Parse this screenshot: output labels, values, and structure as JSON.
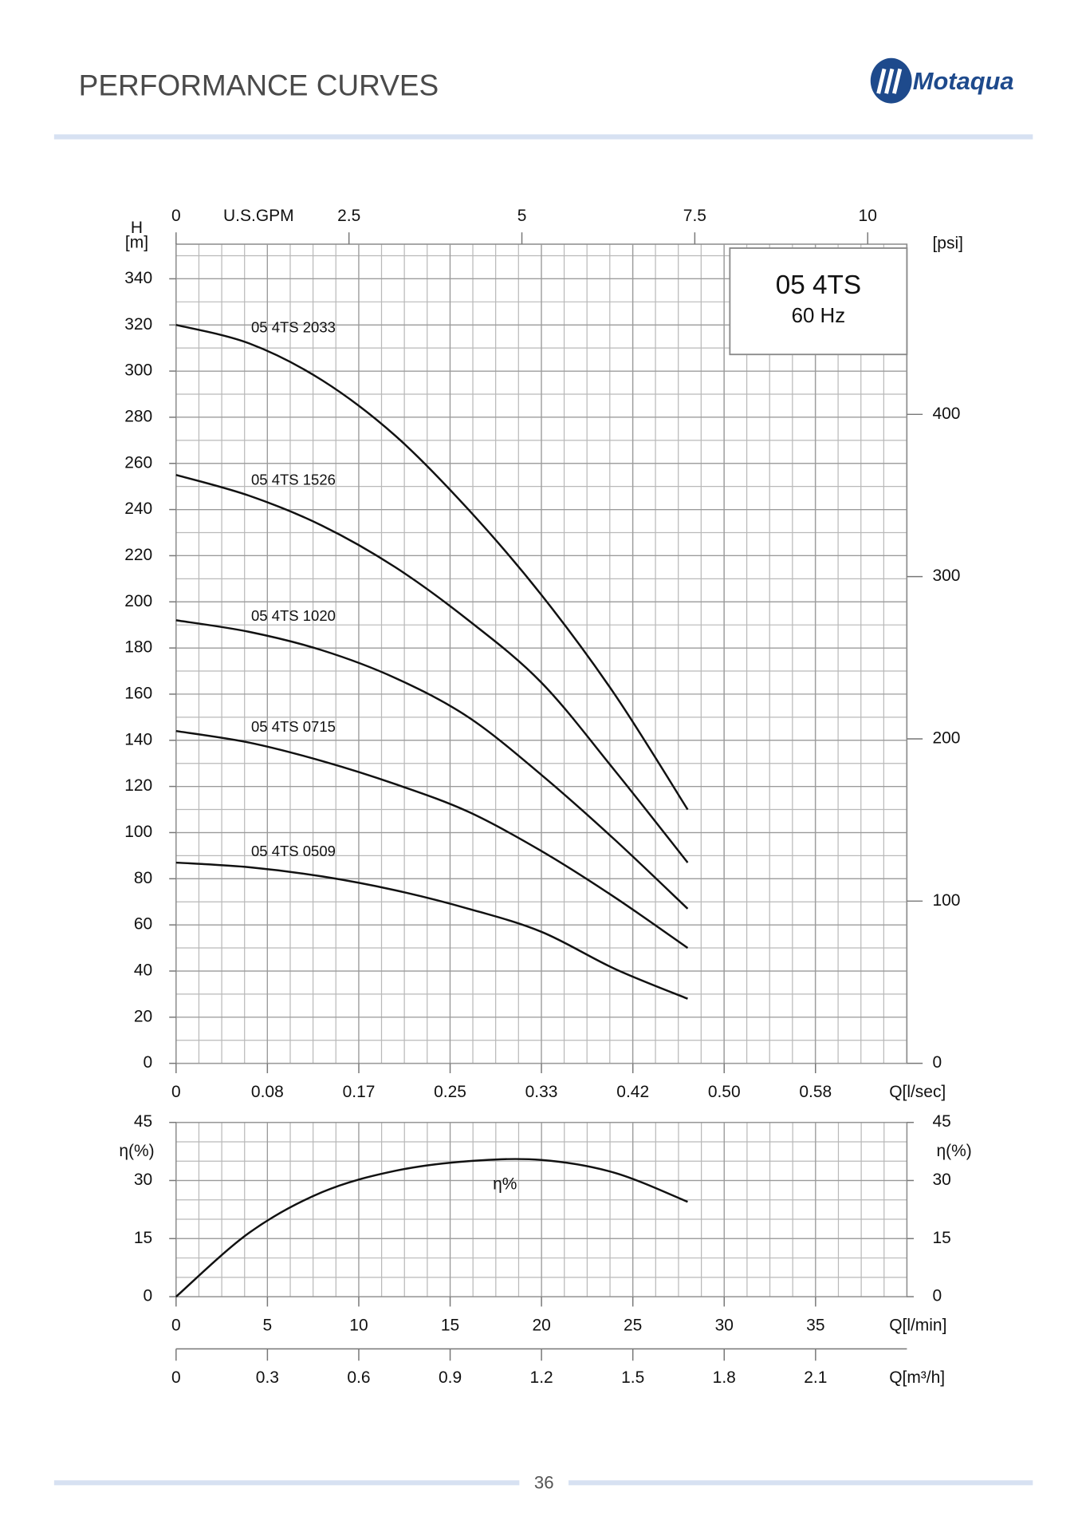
{
  "header": {
    "title": "PERFORMANCE CURVES",
    "logo": "Motaqua"
  },
  "chart_data": [
    {
      "type": "line",
      "box_title": "05 4TS",
      "box_subtitle": "60 Hz",
      "ylabel": "H",
      "yunit": "[m]",
      "y2label": "[psi]",
      "xlabel": "Q[l/sec]",
      "x2label": "U.S.GPM",
      "x": [
        0,
        0.0667,
        0.1333,
        0.2,
        0.2667,
        0.3333,
        0.4,
        0.4667
      ],
      "xlim": [
        0,
        0.6667
      ],
      "xticks": [
        0,
        {
          "value": 0.0833,
          "label": "0.08"
        },
        {
          "value": 0.1667,
          "label": "0.17"
        },
        0.25,
        {
          "value": 0.3333,
          "label": "0.33"
        },
        {
          "value": 0.4167,
          "label": "0.42"
        },
        {
          "value": 0.5,
          "label": "0.50"
        },
        {
          "value": 0.5833,
          "label": "0.58"
        }
      ],
      "x2lim": [
        0,
        10.567
      ],
      "x2ticks": [
        0,
        2.5,
        5,
        7.5,
        10
      ],
      "ylim": [
        0,
        355
      ],
      "yticks": [
        0,
        20,
        40,
        60,
        80,
        100,
        120,
        140,
        160,
        180,
        200,
        220,
        240,
        260,
        280,
        300,
        320,
        340
      ],
      "y2lim": [
        0,
        504.9
      ],
      "y2ticks": [
        0,
        100,
        200,
        300,
        400
      ],
      "grid": true,
      "series": [
        {
          "name": "05 4TS 2033",
          "color": "#111111",
          "values": [
            320,
            312,
            296,
            272,
            240,
            203,
            160,
            110
          ]
        },
        {
          "name": "05 4TS 1526",
          "color": "#111111",
          "values": [
            255,
            246,
            233,
            215,
            192,
            165,
            127,
            87
          ]
        },
        {
          "name": "05 4TS 1020",
          "color": "#111111",
          "values": [
            192,
            187,
            179,
            167,
            150,
            125,
            97,
            67
          ]
        },
        {
          "name": "05 4TS 0715",
          "color": "#111111",
          "values": [
            144,
            139,
            131,
            121,
            109,
            92,
            72,
            50
          ]
        },
        {
          "name": "05 4TS 0509",
          "color": "#111111",
          "values": [
            87,
            85,
            81,
            75,
            67,
            57,
            41,
            28
          ]
        }
      ]
    },
    {
      "type": "line",
      "ylabel": "η(%)",
      "xlabel": "Q[l/min]",
      "x2label": "Q[m³/h]",
      "x": [
        0,
        4,
        8,
        12,
        16,
        20,
        24,
        28
      ],
      "xlim": [
        0,
        40
      ],
      "xticks": [
        0,
        5,
        10,
        15,
        20,
        25,
        30,
        35
      ],
      "x2lim": [
        0,
        2.4
      ],
      "x2ticks": [
        0,
        0.3,
        0.6,
        0.9,
        1.2,
        1.5,
        1.8,
        2.1
      ],
      "ylim": [
        0,
        45
      ],
      "yticks": [
        0,
        15,
        30,
        45
      ],
      "grid": true,
      "series": [
        {
          "name": "η%",
          "color": "#111111",
          "values": [
            0,
            16.5,
            27,
            32.5,
            35,
            35.3,
            32,
            24.5
          ]
        }
      ]
    }
  ],
  "footer": {
    "page": 36
  }
}
